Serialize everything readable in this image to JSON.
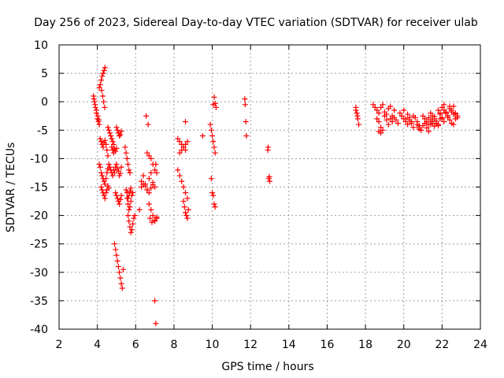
{
  "chart_data": {
    "type": "scatter",
    "title": "Day 256 of 2023, Sidereal Day-to-day VTEC variation (SDTVAR) for receiver ulab",
    "xlabel": "GPS time / hours",
    "ylabel": "SDTVAR / TECUs",
    "xlim": [
      2,
      24
    ],
    "ylim": [
      -40,
      10
    ],
    "x_ticks": [
      2,
      4,
      6,
      8,
      10,
      12,
      14,
      16,
      18,
      20,
      22,
      24
    ],
    "y_ticks": [
      10,
      5,
      0,
      -5,
      -10,
      -15,
      -20,
      -25,
      -30,
      -35,
      -40
    ],
    "grid": true,
    "marker": "+",
    "color": "#ff0000",
    "series": [
      {
        "name": "SDTVAR",
        "x": [
          3.8,
          3.85,
          3.9,
          3.95,
          4.0,
          4.05,
          4.1,
          3.82,
          3.88,
          3.95,
          4.02,
          4.08,
          4.1,
          4.15,
          4.2,
          4.25,
          4.3,
          4.35,
          4.4,
          4.22,
          4.28,
          4.33,
          4.38,
          4.15,
          4.2,
          4.25,
          4.3,
          4.35,
          4.4,
          4.45,
          4.5,
          4.55,
          4.1,
          4.15,
          4.2,
          4.25,
          4.3,
          4.35,
          4.4,
          4.45,
          4.5,
          4.55,
          4.2,
          4.25,
          4.3,
          4.35,
          4.4,
          4.45,
          4.5,
          4.55,
          4.6,
          4.55,
          4.6,
          4.65,
          4.7,
          4.75,
          4.8,
          4.85,
          4.75,
          4.8,
          4.85,
          4.9,
          4.95,
          5.0,
          4.6,
          4.65,
          4.7,
          4.75,
          4.8,
          4.85,
          4.9,
          4.95,
          5.0,
          5.05,
          5.1,
          5.15,
          5.2,
          5.25,
          4.95,
          5.0,
          5.05,
          5.1,
          5.15,
          5.2,
          5.25,
          4.9,
          4.95,
          5.0,
          5.05,
          5.1,
          5.15,
          5.2,
          5.25,
          5.3,
          5.35,
          5.0,
          5.05,
          5.1,
          5.15,
          5.2,
          5.25,
          5.45,
          5.5,
          5.55,
          5.6,
          5.65,
          5.7,
          5.5,
          5.55,
          5.6,
          5.65,
          5.7,
          5.75,
          5.6,
          5.65,
          5.7,
          5.75,
          5.8,
          5.85,
          5.9,
          5.95,
          5.55,
          5.6,
          5.65,
          5.7,
          5.75,
          5.8,
          5.85,
          6.2,
          6.3,
          6.4,
          6.5,
          6.6,
          6.7,
          6.8,
          6.9,
          6.3,
          6.4,
          6.5,
          6.6,
          6.7,
          6.8,
          6.9,
          7.0,
          6.6,
          6.7,
          6.8,
          6.9,
          7.0,
          6.7,
          6.8,
          6.9,
          7.0,
          7.1,
          6.55,
          6.65,
          6.75,
          6.85,
          7.0,
          7.05,
          7.1,
          8.2,
          8.3,
          8.4,
          8.5,
          8.6,
          8.3,
          8.4,
          8.5,
          8.6,
          8.7,
          8.2,
          8.3,
          8.4,
          8.5,
          8.6,
          8.7,
          8.5,
          8.55,
          8.6,
          8.65,
          8.7,
          8.75,
          8.6,
          9.5,
          9.9,
          9.95,
          10.0,
          10.05,
          10.1,
          10.15,
          9.95,
          10.0,
          10.05,
          10.1,
          10.15,
          10.05,
          10.1,
          10.15,
          10.2,
          11.7,
          11.72,
          11.75,
          11.78,
          12.9,
          12.95,
          13.0,
          12.92,
          12.98,
          17.5,
          17.55,
          17.6,
          17.65,
          17.5,
          17.58,
          18.4,
          18.5,
          18.6,
          18.7,
          18.8,
          18.9,
          19.0,
          19.1,
          19.2,
          19.3,
          19.4,
          19.5,
          18.6,
          18.7,
          18.8,
          18.9,
          19.0,
          19.1,
          19.2,
          19.3,
          19.4,
          19.5,
          19.6,
          19.7,
          19.8,
          19.9,
          20.0,
          20.1,
          20.2,
          20.3,
          20.4,
          20.5,
          20.0,
          20.1,
          20.2,
          20.3,
          20.4,
          20.5,
          20.6,
          20.7,
          20.8,
          20.9,
          20.7,
          20.8,
          20.9,
          21.0,
          21.1,
          21.2,
          21.3,
          21.4,
          21.5,
          21.6,
          21.0,
          21.1,
          21.2,
          21.3,
          21.4,
          21.5,
          21.6,
          21.7,
          21.8,
          21.9,
          21.2,
          21.3,
          21.4,
          21.5,
          21.6,
          21.7,
          21.8,
          21.9,
          22.0,
          22.0,
          22.1,
          22.2,
          22.3,
          22.4,
          22.5,
          22.6,
          22.7,
          22.8,
          22.0,
          22.1,
          22.2,
          22.3,
          22.4,
          22.5,
          22.6,
          22.7,
          22.8,
          21.8,
          21.9,
          22.0,
          22.1,
          22.2,
          22.3,
          22.4,
          22.5,
          22.6,
          22.7,
          7.0,
          7.05,
          7.1,
          18.7,
          18.8,
          20.8
        ],
        "y": [
          1.0,
          0.0,
          -1.0,
          -2.0,
          -3.0,
          -3.5,
          -4.0,
          0.5,
          -0.5,
          -1.5,
          -2.5,
          -3.2,
          2.5,
          3.0,
          3.8,
          4.5,
          5.0,
          5.5,
          6.0,
          2.0,
          1.0,
          0.0,
          -1.0,
          -6.5,
          -7.0,
          -7.5,
          -8.0,
          -7.2,
          -6.8,
          -7.5,
          -8.5,
          -9.5,
          -11.0,
          -11.5,
          -12.5,
          -13.0,
          -13.5,
          -14.0,
          -14.5,
          -13.5,
          -12.5,
          -11.8,
          -15.0,
          -15.5,
          -16.0,
          -16.5,
          -17.0,
          -16.0,
          -15.5,
          -14.8,
          -15.2,
          -4.5,
          -5.0,
          -5.5,
          -6.0,
          -6.5,
          -7.0,
          -7.5,
          -8.0,
          -8.5,
          -9.0,
          -8.3,
          -8.7,
          -8.2,
          -11.0,
          -11.5,
          -12.0,
          -12.5,
          -13.0,
          -12.0,
          -12.5,
          -11.5,
          -11.0,
          -11.8,
          -12.2,
          -13.0,
          -12.6,
          -11.5,
          -16.0,
          -16.5,
          -17.0,
          -17.5,
          -18.0,
          -17.2,
          -16.5,
          -25.0,
          -26.0,
          -27.0,
          -28.0,
          -29.0,
          -30.0,
          -31.0,
          -32.0,
          -32.8,
          -29.5,
          -4.5,
          -5.0,
          -5.5,
          -6.0,
          -5.8,
          -5.2,
          -8.0,
          -9.0,
          -10.0,
          -11.0,
          -12.0,
          -12.5,
          -15.5,
          -16.0,
          -17.0,
          -16.5,
          -15.8,
          -15.2,
          -20.0,
          -21.0,
          -22.0,
          -23.0,
          -22.5,
          -21.5,
          -20.5,
          -20.0,
          -17.0,
          -18.0,
          -19.0,
          -18.5,
          -17.5,
          -16.5,
          -16.0,
          -19.0,
          -15.0,
          -14.5,
          -14.8,
          -15.5,
          -16.0,
          -15.2,
          -14.6,
          -14.0,
          -13.0,
          -14.5,
          -15.5,
          -13.5,
          -12.5,
          -14.2,
          -15.0,
          -9.0,
          -9.5,
          -10.0,
          -11.0,
          -12.0,
          -18.0,
          -19.0,
          -20.0,
          -21.0,
          -20.5,
          -2.5,
          -4.0,
          -20.5,
          -21.2,
          -20.8,
          -11.0,
          -12.5,
          -6.5,
          -7.0,
          -7.5,
          -8.0,
          -8.5,
          -9.0,
          -8.5,
          -8.0,
          -7.5,
          -7.0,
          -12.0,
          -13.0,
          -14.0,
          -15.0,
          -16.0,
          -17.0,
          -17.5,
          -18.5,
          -19.5,
          -20.0,
          -20.5,
          -19.0,
          -3.5,
          -6.0,
          -4.0,
          -5.0,
          -6.0,
          -7.0,
          -8.0,
          -9.0,
          -13.5,
          -16.0,
          -16.5,
          -18.0,
          -18.5,
          -0.5,
          0.8,
          -0.3,
          -1.0,
          0.5,
          -0.5,
          -3.5,
          -6.0,
          -8.5,
          -13.5,
          -14.0,
          -8.0,
          -13.2,
          -1.0,
          -2.0,
          -3.0,
          -4.0,
          -1.5,
          -2.5,
          -0.5,
          -1.0,
          -1.5,
          -2.0,
          -1.0,
          -0.5,
          -1.8,
          -2.2,
          -1.2,
          -0.8,
          -2.5,
          -1.5,
          -3.0,
          -3.5,
          -4.5,
          -5.0,
          -2.5,
          -3.2,
          -4.0,
          -3.0,
          -3.5,
          -2.8,
          -3.2,
          -3.8,
          -2.0,
          -2.5,
          -1.5,
          -3.0,
          -2.2,
          -2.8,
          -3.5,
          -2.5,
          -3.0,
          -3.5,
          -4.0,
          -3.2,
          -3.8,
          -4.5,
          -2.8,
          -3.5,
          -4.2,
          -5.0,
          -4.0,
          -4.5,
          -5.0,
          -4.2,
          -3.8,
          -4.6,
          -5.2,
          -4.0,
          -3.5,
          -4.3,
          -2.5,
          -3.0,
          -3.5,
          -2.8,
          -3.2,
          -3.8,
          -2.6,
          -3.4,
          -4.0,
          -3.0,
          -3.5,
          -4.0,
          -2.0,
          -2.5,
          -3.0,
          -3.8,
          -4.2,
          -2.2,
          -2.8,
          -1.0,
          -1.5,
          -2.0,
          -2.5,
          -1.2,
          -1.8,
          -0.8,
          -2.2,
          -2.8,
          -3.0,
          -3.5,
          -2.0,
          -2.8,
          -3.2,
          -3.8,
          -4.0,
          -3.0,
          -2.5,
          -1.5,
          -2.0,
          -1.0,
          -0.5,
          -1.8,
          -2.5,
          -0.8,
          -1.5,
          -2.2,
          -2.0,
          -35.0,
          -39.0,
          -20.3,
          -5.2,
          -5.5,
          -4.8
        ]
      }
    ]
  }
}
